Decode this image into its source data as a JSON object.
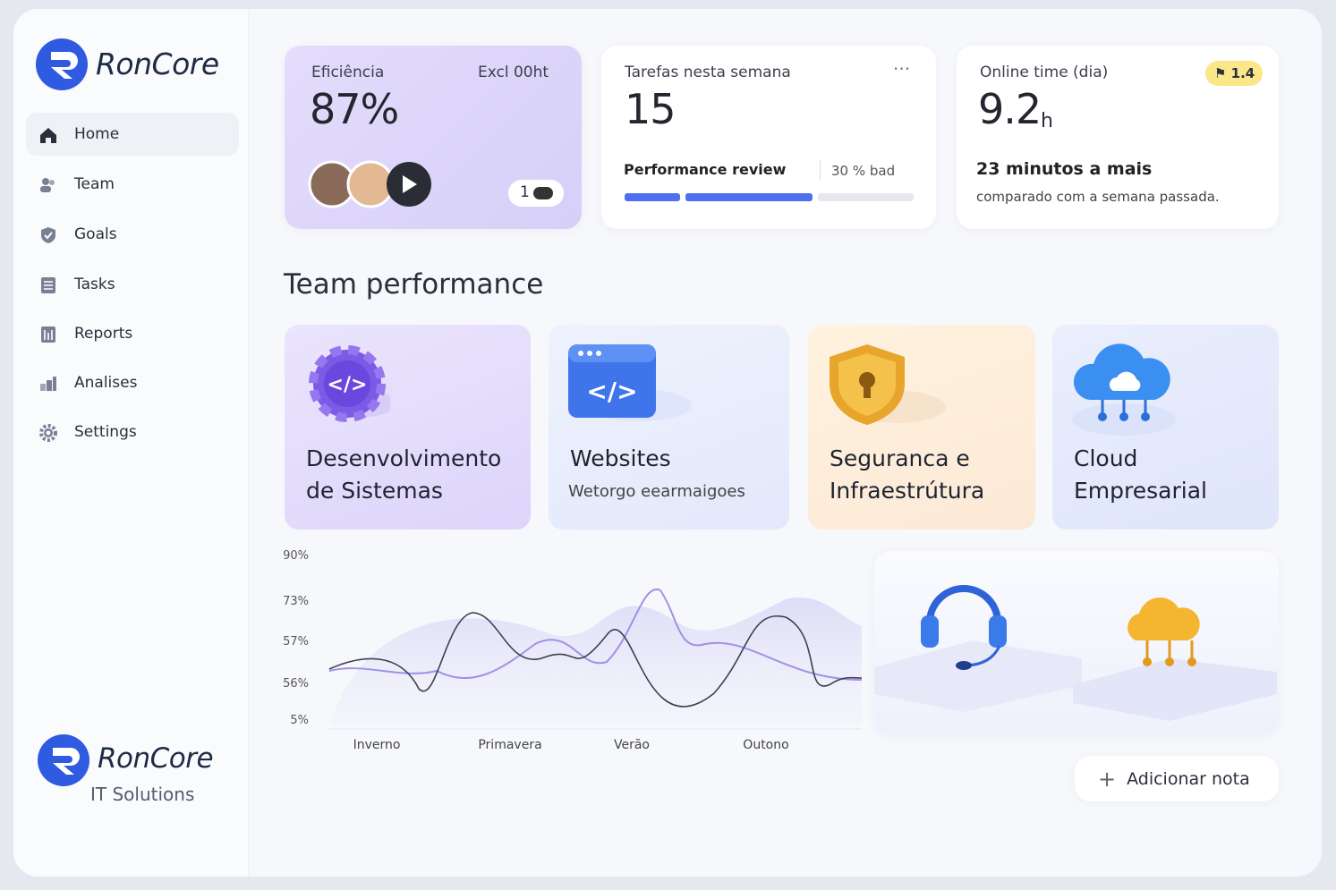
{
  "brand": {
    "name": "RonCore"
  },
  "nav": [
    "Home",
    "Team",
    "Goals",
    "Tasks",
    "Reports",
    "Analises",
    "Settings"
  ],
  "footer_brand": {
    "name": "RonCore",
    "tagline": "IT Solutions"
  },
  "cards": [
    {
      "label": "Eficiência",
      "value": "87%",
      "filter": "Excl 00ht",
      "badge": "1"
    },
    {
      "label": "Tarefas nesta semana",
      "value": "15",
      "review_label": "Performance review",
      "review_note": "30 % bad"
    },
    {
      "label": "Online time (dia)",
      "value": "9.2",
      "unit": "h",
      "badge": "1.4",
      "headline": "23 minutos a mais",
      "note": "comparado com a semana passada."
    }
  ],
  "section_title": "Team performance",
  "services": [
    {
      "title": "Desenvolvimento de Sistemas"
    },
    {
      "title": "Websites",
      "subtitle": "Wetorgo eearmaigoes"
    },
    {
      "title": "Seguranca e Infraestrútura"
    },
    {
      "title": "Cloud Empresarial"
    }
  ],
  "chart": {
    "y_labels": [
      "90%",
      "73%",
      "57%",
      "56%",
      "5%"
    ],
    "x_labels": [
      "Inverno",
      "Primavera",
      "Verão",
      "Outono"
    ]
  },
  "add_note": "Adicionar nota"
}
